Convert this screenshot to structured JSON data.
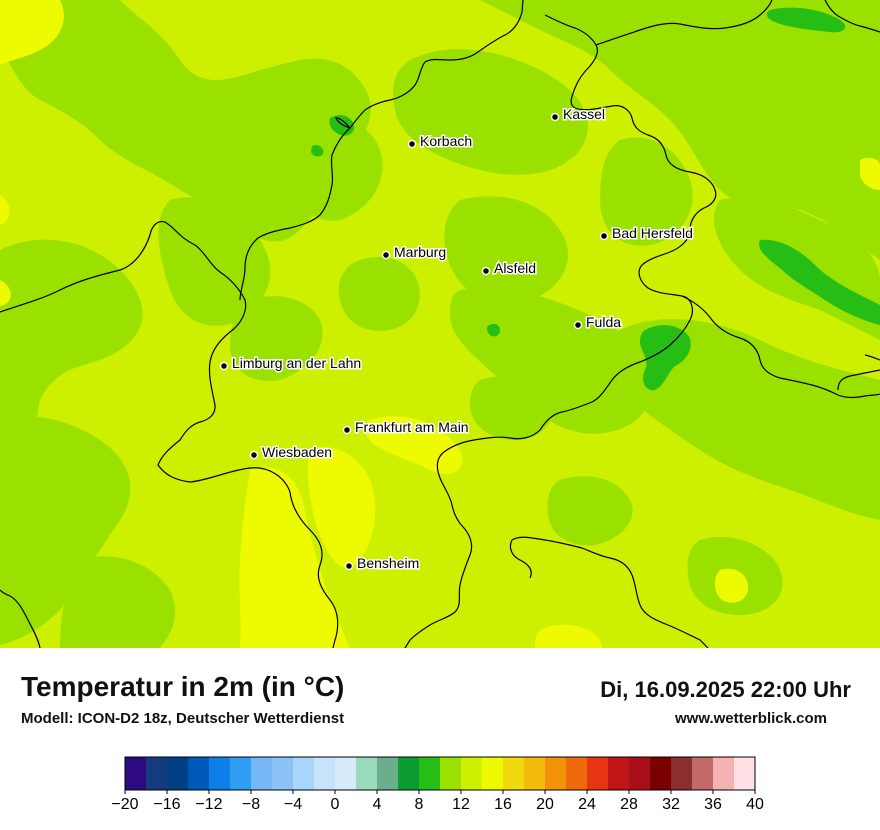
{
  "title": "Temperatur in 2m (in °C)",
  "model": "Modell: ICON-D2 18z, Deutscher Wetterdienst",
  "datetime": "Di, 16.09.2025 22:00 Uhr",
  "website": "www.wetterblick.com",
  "cities": [
    {
      "name": "Kassel"
    },
    {
      "name": "Korbach"
    },
    {
      "name": "Bad Hersfeld"
    },
    {
      "name": "Marburg"
    },
    {
      "name": "Alsfeld"
    },
    {
      "name": "Fulda"
    },
    {
      "name": "Limburg an der Lahn"
    },
    {
      "name": "Frankfurt am Main"
    },
    {
      "name": "Wiesbaden"
    },
    {
      "name": "Bensheim"
    }
  ],
  "legend": {
    "min": -20,
    "max": 40,
    "step": 2,
    "tick_labels": [
      "−20",
      "−16",
      "−12",
      "−8",
      "−4",
      "0",
      "4",
      "8",
      "12",
      "16",
      "20",
      "24",
      "28",
      "32",
      "36",
      "40"
    ],
    "colors": [
      "#2e0a80",
      "#133b7d",
      "#003f86",
      "#0059b8",
      "#0e7fe8",
      "#2f9df2",
      "#75b8f5",
      "#8cc3f6",
      "#a9d5fa",
      "#c7e3fa",
      "#d9ebfb",
      "#9adbbe",
      "#6aae8c",
      "#0b9c34",
      "#26bd14",
      "#9be100",
      "#cdf000",
      "#eefb00",
      "#f0da0e",
      "#f3bb0b",
      "#f19208",
      "#ef6a0b",
      "#e53512",
      "#bf1517",
      "#a80f19",
      "#7d0000",
      "#8b2e2e",
      "#c26a6a",
      "#f4b2b2",
      "#ffe0e5"
    ]
  },
  "map_colors": {
    "c10_12": "#9be100",
    "c12_14": "#cdf000",
    "c14_16": "#eefb00",
    "c8_10": "#26bd14"
  }
}
